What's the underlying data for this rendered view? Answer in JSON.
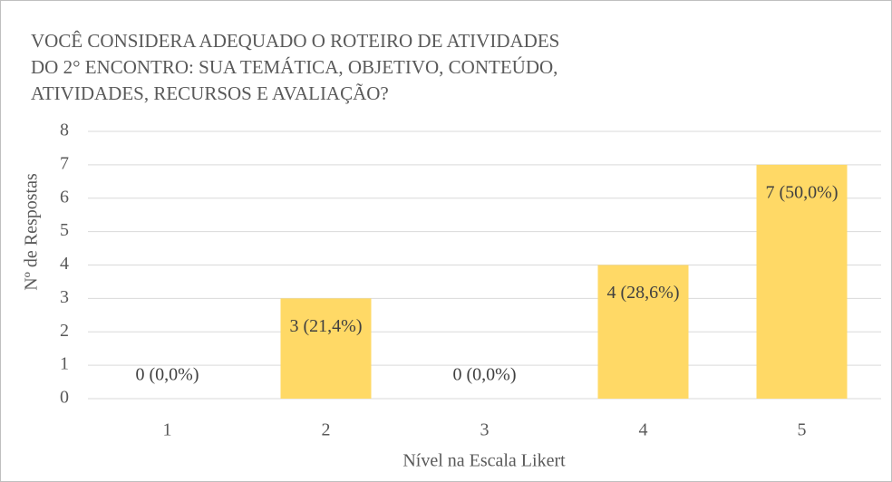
{
  "chart_data": {
    "type": "bar",
    "title": [
      "VOCÊ CONSIDERA ADEQUADO O ROTEIRO DE ATIVIDADES",
      "DO 2° ENCONTRO: SUA TEMÁTICA, OBJETIVO, CONTEÚDO,",
      "ATIVIDADES, RECURSOS E AVALIAÇÃO?"
    ],
    "x_label": "Nível na Escala Likert",
    "y_label": "Nº de Respostas",
    "categories": [
      "1",
      "2",
      "3",
      "4",
      "5"
    ],
    "values": [
      0,
      3,
      0,
      4,
      7
    ],
    "value_labels": [
      "0 (0,0%)",
      "3 (21,4%)",
      "0 (0,0%)",
      "4 (28,6%)",
      "7 (50,0%)"
    ],
    "color": "#ffd966",
    "ylim": [
      0,
      8
    ],
    "yticks": [
      0,
      1,
      2,
      3,
      4,
      5,
      6,
      7,
      8
    ],
    "grid": true
  }
}
